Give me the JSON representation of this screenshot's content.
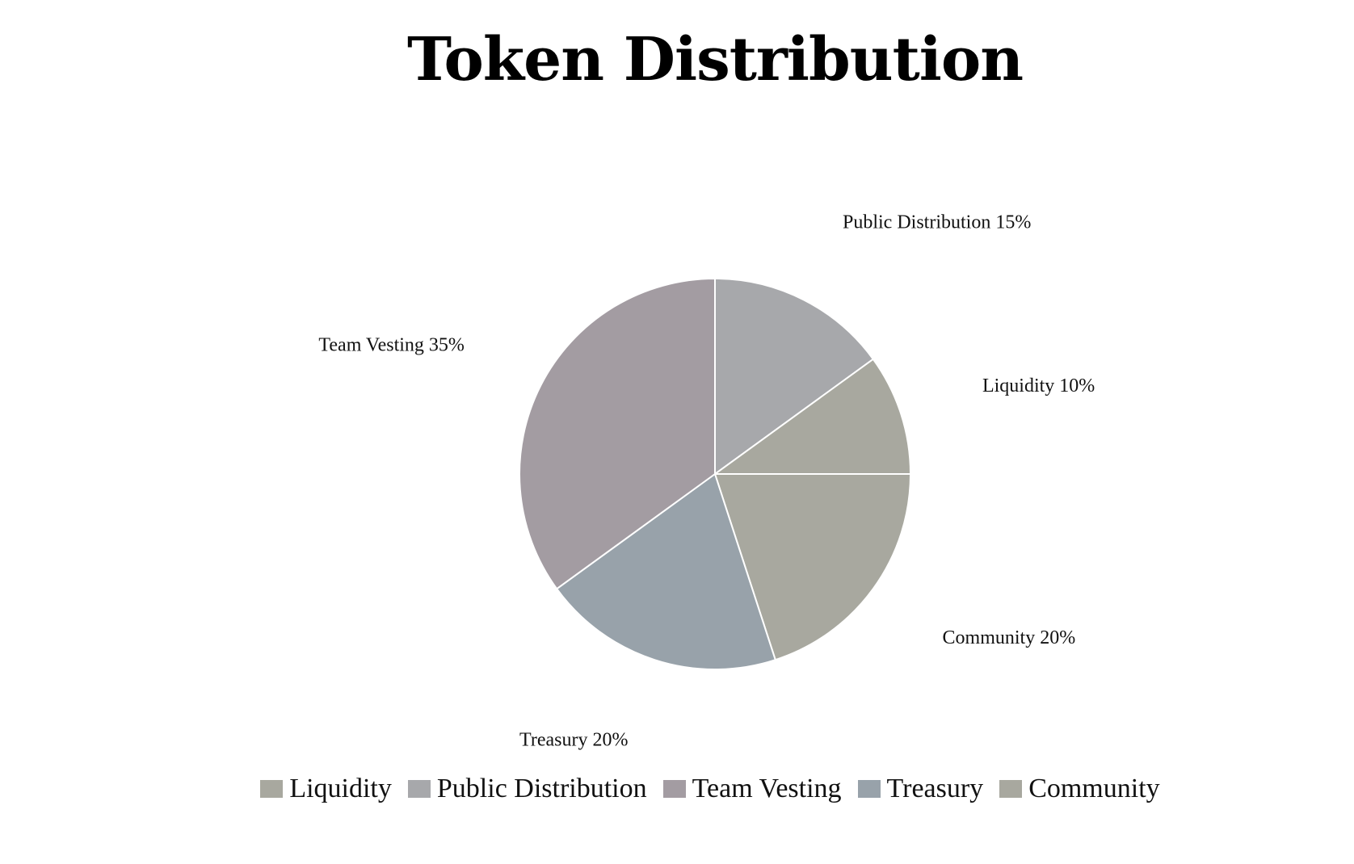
{
  "chart_data": {
    "type": "pie",
    "title": "Token Distribution",
    "unit": "%",
    "legend_position": "bottom",
    "slices": [
      {
        "label": "Public Distribution",
        "value": 15,
        "color": "#a7a8ab"
      },
      {
        "label": "Liquidity",
        "value": 10,
        "color": "#a8a89f"
      },
      {
        "label": "Community",
        "value": 20,
        "color": "#a8a89f"
      },
      {
        "label": "Treasury",
        "value": 20,
        "color": "#98a2aa"
      },
      {
        "label": "Team Vesting",
        "value": 35,
        "color": "#a39ca2"
      }
    ],
    "legend": [
      {
        "label": "Liquidity",
        "color": "#a8a89f"
      },
      {
        "label": "Public Distribution",
        "color": "#a7a8ab"
      },
      {
        "label": "Team Vesting",
        "color": "#a39ca2"
      },
      {
        "label": "Treasury",
        "color": "#98a2aa"
      },
      {
        "label": "Community",
        "color": "#a8a89f"
      }
    ]
  }
}
